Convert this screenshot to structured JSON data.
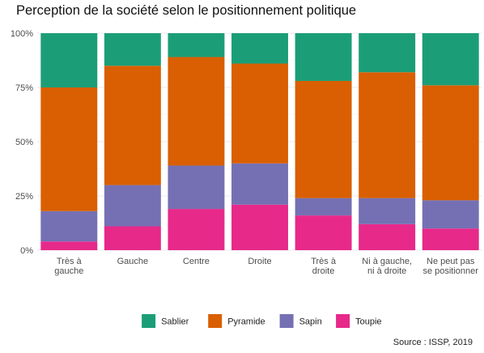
{
  "chart_data": {
    "type": "bar",
    "stacked": true,
    "title": "Perception de la société selon le positionnement politique",
    "xlabel": "",
    "ylabel": "",
    "ylim": [
      0,
      100
    ],
    "y_ticks": [
      "0%",
      "25%",
      "50%",
      "75%",
      "100%"
    ],
    "categories": [
      [
        "Très à",
        "gauche"
      ],
      [
        "Gauche"
      ],
      [
        "Centre"
      ],
      [
        "Droite"
      ],
      [
        "Très à",
        "droite"
      ],
      [
        "Ni à gauche,",
        "ni à droite"
      ],
      [
        "Ne peut pas",
        "se positionner"
      ]
    ],
    "series": [
      {
        "name": "Toupie",
        "color": "#e7298a",
        "values": [
          4,
          11,
          19,
          21,
          16,
          12,
          10
        ]
      },
      {
        "name": "Sapin",
        "color": "#7570b3",
        "values": [
          14,
          19,
          20,
          19,
          8,
          12,
          13
        ]
      },
      {
        "name": "Pyramide",
        "color": "#d95f02",
        "values": [
          57,
          55,
          50,
          46,
          54,
          58,
          53
        ]
      },
      {
        "name": "Sablier",
        "color": "#1b9e77",
        "values": [
          25,
          15,
          11,
          14,
          22,
          18,
          24
        ]
      }
    ],
    "legend_order": [
      "Sablier",
      "Pyramide",
      "Sapin",
      "Toupie"
    ],
    "legend_position": "bottom",
    "grid": true
  },
  "caption": "Source : ISSP, 2019"
}
